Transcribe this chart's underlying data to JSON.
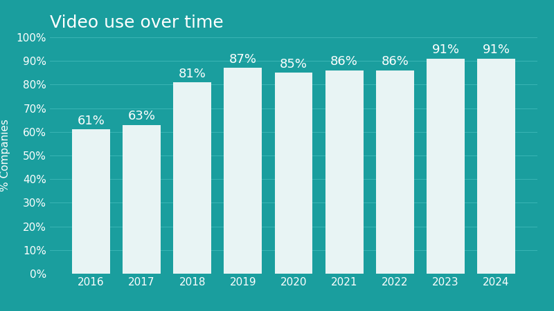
{
  "title": "Video use over time",
  "ylabel": "% Companies",
  "categories": [
    "2016",
    "2017",
    "2018",
    "2019",
    "2020",
    "2021",
    "2022",
    "2023",
    "2024"
  ],
  "values": [
    61,
    63,
    81,
    87,
    85,
    86,
    86,
    91,
    91
  ],
  "bar_color": "#e8f4f4",
  "background_color": "#1a9e9e",
  "grid_color": "#3ab5b5",
  "text_color": "#ffffff",
  "ylim": [
    0,
    100
  ],
  "yticks": [
    0,
    10,
    20,
    30,
    40,
    50,
    60,
    70,
    80,
    90,
    100
  ],
  "title_fontsize": 18,
  "label_fontsize": 11,
  "tick_fontsize": 11,
  "annotation_fontsize": 13,
  "bar_width": 0.75
}
